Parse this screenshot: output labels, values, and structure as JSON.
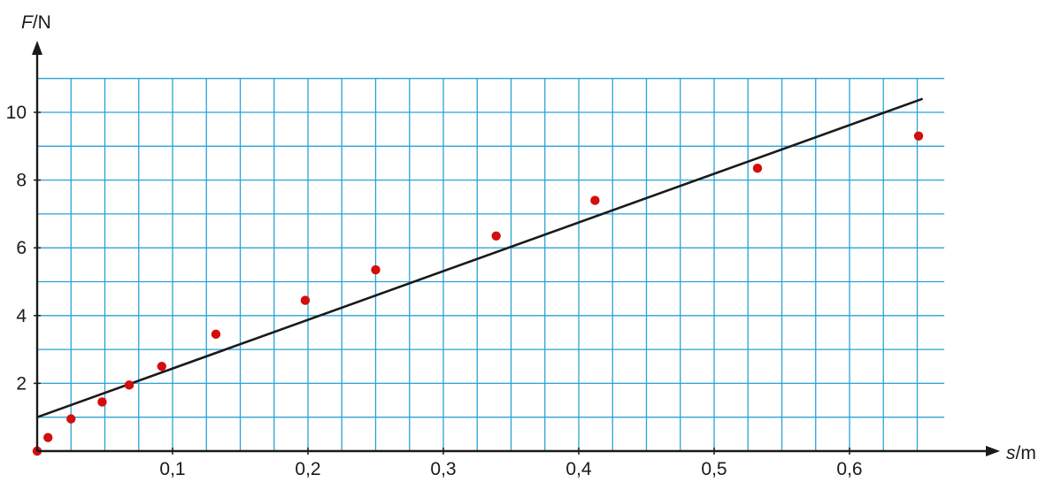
{
  "chart_data": {
    "type": "scatter",
    "title": "",
    "xlabel": {
      "symbol": "s",
      "unit": "/m"
    },
    "ylabel": {
      "symbol": "F",
      "unit": "/N"
    },
    "xlim": [
      0,
      0.67
    ],
    "ylim": [
      0,
      11
    ],
    "x_ticks": [
      0.1,
      0.2,
      0.3,
      0.4,
      0.5,
      0.6
    ],
    "x_tick_labels": [
      "0,1",
      "0,2",
      "0,3",
      "0,4",
      "0,5",
      "0,6"
    ],
    "y_ticks": [
      2,
      4,
      6,
      8,
      10
    ],
    "y_tick_labels": [
      "2",
      "4",
      "6",
      "8",
      "10"
    ],
    "grid": true,
    "grid_minor": {
      "x_step": 0.025,
      "y_step": 1
    },
    "points": [
      {
        "x": 0.0,
        "y": 0.0
      },
      {
        "x": 0.008,
        "y": 0.4
      },
      {
        "x": 0.025,
        "y": 0.95
      },
      {
        "x": 0.048,
        "y": 1.45
      },
      {
        "x": 0.068,
        "y": 1.95
      },
      {
        "x": 0.092,
        "y": 2.5
      },
      {
        "x": 0.132,
        "y": 3.45
      },
      {
        "x": 0.198,
        "y": 4.45
      },
      {
        "x": 0.25,
        "y": 5.35
      },
      {
        "x": 0.339,
        "y": 6.35
      },
      {
        "x": 0.412,
        "y": 7.4
      },
      {
        "x": 0.532,
        "y": 8.35
      },
      {
        "x": 0.651,
        "y": 9.3
      }
    ],
    "fit_line": {
      "x": [
        0.0,
        0.654
      ],
      "y": [
        1.0,
        10.4
      ]
    },
    "colors": {
      "grid": "#29a3d6",
      "points": "#d40d0d",
      "line": "#1a1a1a",
      "axes": "#1a1a1a"
    }
  }
}
